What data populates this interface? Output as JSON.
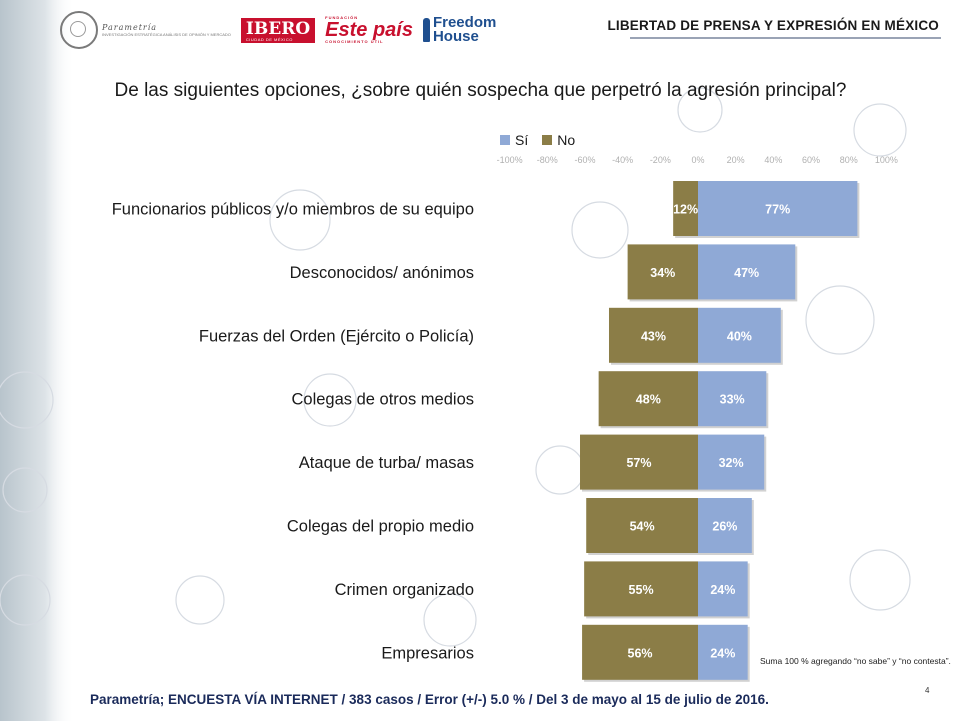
{
  "header": {
    "title": "LIBERTAD DE PRENSA Y EXPRESIÓN EN MÉXICO",
    "logos": {
      "parametria": "Parametría",
      "parametria_sub": "INVESTIGACIÓN ESTRATÉGICA ANÁLISIS DE OPINIÓN Y MERCADO",
      "ibero": "IBERO",
      "ibero_sub": "CIUDAD DE MÉXICO",
      "estepais_pre": "FUNDACIÓN",
      "estepais": "Este país",
      "estepais_sub": "CONOCIMIENTO ÚTIL",
      "freedom_1": "Freedom",
      "freedom_2": "House"
    }
  },
  "question": "De las siguientes opciones, ¿sobre quién sospecha que perpetró la agresión principal?",
  "chart_data": {
    "type": "bar",
    "orientation": "horizontal-diverging",
    "categories": [
      "Funcionarios públicos y/o miembros de su equipo",
      "Desconocidos/ anónimos",
      "Fuerzas del Orden (Ejército o Policía)",
      "Colegas de otros medios",
      "Ataque de turba/ masas",
      "Colegas del propio medio",
      "Crimen organizado",
      "Empresarios"
    ],
    "series": [
      {
        "name": "Sí",
        "color": "#8fa9d6",
        "values": [
          77,
          47,
          40,
          33,
          32,
          26,
          24,
          24
        ],
        "labels": [
          "77%",
          "47%",
          "40%",
          "33%",
          "32%",
          "26%",
          "24%",
          "24%"
        ]
      },
      {
        "name": "No",
        "color": "#8b7d47",
        "values": [
          12,
          34,
          43,
          48,
          57,
          54,
          55,
          56
        ],
        "labels": [
          "12%",
          "34%",
          "43%",
          "48%",
          "57%",
          "54%",
          "55%",
          "56%"
        ]
      }
    ],
    "xlim": [
      -100,
      100
    ],
    "tick_labels": [
      "-100%",
      "-80%",
      "-60%",
      "-40%",
      "-20%",
      "0%",
      "20%",
      "40%",
      "60%",
      "80%",
      "100%"
    ],
    "legend_position": "top"
  },
  "note": "Suma 100 % agregando “no sabe” y “no contesta”.",
  "page_number": "4",
  "footer": "Parametría; ENCUESTA VÍA INTERNET /  383 casos / Error (+/-) 5.0 % / Del 3 de mayo al 15 de julio de 2016."
}
